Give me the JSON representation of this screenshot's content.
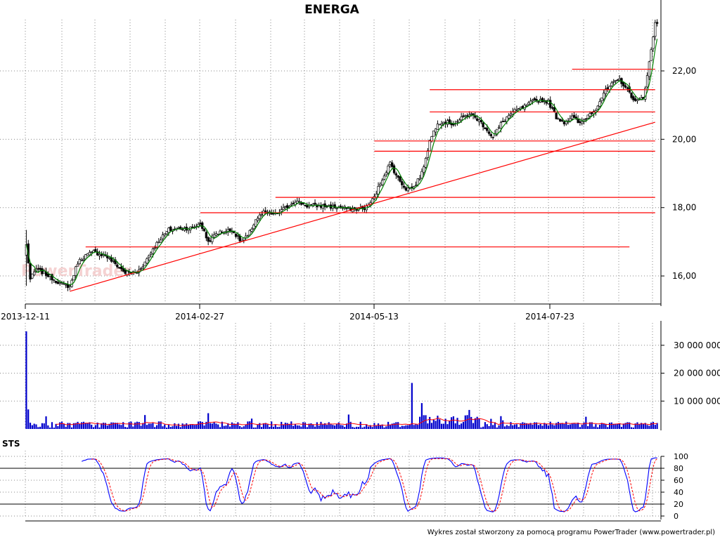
{
  "chart_data": [
    {
      "type": "candlestick",
      "title": "ENERGA",
      "x_tick_labels": [
        "2013-12-11",
        "2014-02-27",
        "2014-05-13",
        "2014-07-23"
      ],
      "y_tick_labels": [
        "16,00",
        "18,00",
        "20,00",
        "22,00"
      ],
      "ylim": [
        15.2,
        23.5
      ],
      "grid": true,
      "series": [
        {
          "type": "candlestick",
          "close_path": [
            [
              0,
              16.9
            ],
            [
              2,
              15.9
            ],
            [
              5,
              16.2
            ],
            [
              10,
              16.05
            ],
            [
              14,
              15.9
            ],
            [
              18,
              15.75
            ],
            [
              22,
              15.7
            ],
            [
              26,
              16.4
            ],
            [
              30,
              16.6
            ],
            [
              34,
              16.7
            ],
            [
              40,
              16.6
            ],
            [
              46,
              16.3
            ],
            [
              50,
              16.1
            ],
            [
              56,
              16.1
            ],
            [
              60,
              16.4
            ],
            [
              64,
              16.8
            ],
            [
              68,
              17.1
            ],
            [
              72,
              17.35
            ],
            [
              78,
              17.4
            ],
            [
              84,
              17.4
            ],
            [
              88,
              17.55
            ],
            [
              92,
              17.0
            ],
            [
              96,
              17.25
            ],
            [
              100,
              17.3
            ],
            [
              104,
              17.35
            ],
            [
              108,
              17.05
            ],
            [
              112,
              17.15
            ],
            [
              116,
              17.65
            ],
            [
              120,
              17.85
            ],
            [
              126,
              17.8
            ],
            [
              130,
              17.95
            ],
            [
              136,
              18.2
            ],
            [
              142,
              18.05
            ],
            [
              150,
              18.05
            ],
            [
              158,
              18.0
            ],
            [
              166,
              17.95
            ],
            [
              172,
              18.0
            ],
            [
              176,
              18.3
            ],
            [
              180,
              18.85
            ],
            [
              184,
              19.3
            ],
            [
              188,
              18.85
            ],
            [
              192,
              18.55
            ],
            [
              196,
              18.6
            ],
            [
              200,
              19.0
            ],
            [
              204,
              19.95
            ],
            [
              208,
              20.5
            ],
            [
              212,
              20.5
            ],
            [
              216,
              20.45
            ],
            [
              220,
              20.6
            ],
            [
              224,
              20.75
            ],
            [
              228,
              20.6
            ],
            [
              232,
              20.35
            ],
            [
              236,
              20.05
            ],
            [
              240,
              20.45
            ],
            [
              244,
              20.7
            ],
            [
              248,
              20.85
            ],
            [
              252,
              20.95
            ],
            [
              256,
              21.1
            ],
            [
              260,
              21.15
            ],
            [
              264,
              21.1
            ],
            [
              268,
              20.65
            ],
            [
              272,
              20.5
            ],
            [
              276,
              20.65
            ],
            [
              280,
              20.45
            ],
            [
              284,
              20.7
            ],
            [
              288,
              20.9
            ],
            [
              292,
              21.35
            ],
            [
              296,
              21.6
            ],
            [
              300,
              21.75
            ],
            [
              304,
              21.45
            ],
            [
              308,
              21.1
            ],
            [
              312,
              21.2
            ],
            [
              316,
              22.6
            ],
            [
              318,
              23.4
            ]
          ]
        },
        {
          "name": "",
          "type": "line",
          "note": "green moving average"
        }
      ],
      "horizontal_lines": [
        {
          "y": 16.85,
          "x_from": 30,
          "x_to": 305
        },
        {
          "y": 17.85,
          "x_from": 88,
          "x_to": 318
        },
        {
          "y": 18.3,
          "x_from": 126,
          "x_to": 318
        },
        {
          "y": 19.95,
          "x_from": 176,
          "x_to": 318
        },
        {
          "y": 19.65,
          "x_from": 176,
          "x_to": 318
        },
        {
          "y": 20.8,
          "x_from": 204,
          "x_to": 318
        },
        {
          "y": 21.45,
          "x_from": 204,
          "x_to": 318
        },
        {
          "y": 22.05,
          "x_from": 276,
          "x_to": 318
        }
      ],
      "trendline": {
        "from": [
          22,
          15.55
        ],
        "to": [
          318,
          20.5
        ]
      }
    },
    {
      "type": "bar",
      "y_tick_labels": [
        "10 000 000",
        "20 000 000",
        "30 000 000"
      ],
      "ylim": [
        0,
        38000000
      ],
      "spikes": [
        {
          "index": 0,
          "value": 35000000
        },
        {
          "index": 1,
          "value": 7000000
        },
        {
          "index": 195,
          "value": 16500000
        }
      ],
      "baseline_level": 1200000
    },
    {
      "type": "line",
      "label": "STS",
      "y_tick_labels": [
        "0",
        "20",
        "40",
        "60",
        "80",
        "100"
      ],
      "ylim": [
        0,
        100
      ],
      "reference_lines": [
        20,
        80
      ],
      "series": [
        {
          "name": "",
          "color": "#0000ff"
        },
        {
          "name": "",
          "color": "#ff0000",
          "style": "dashed"
        }
      ]
    }
  ],
  "footer_text": "Wykres został stworzony za pomocą programu PowerTrader (www.powertrader.pl)",
  "watermark": "PowerTrader",
  "colors": {
    "candle_up": "#ffffff",
    "candle_down": "#000000",
    "ma": "#008000",
    "support": "#ff0000",
    "volume": "#0000cc",
    "sts_k": "#0000ff",
    "sts_d": "#ff0000"
  }
}
